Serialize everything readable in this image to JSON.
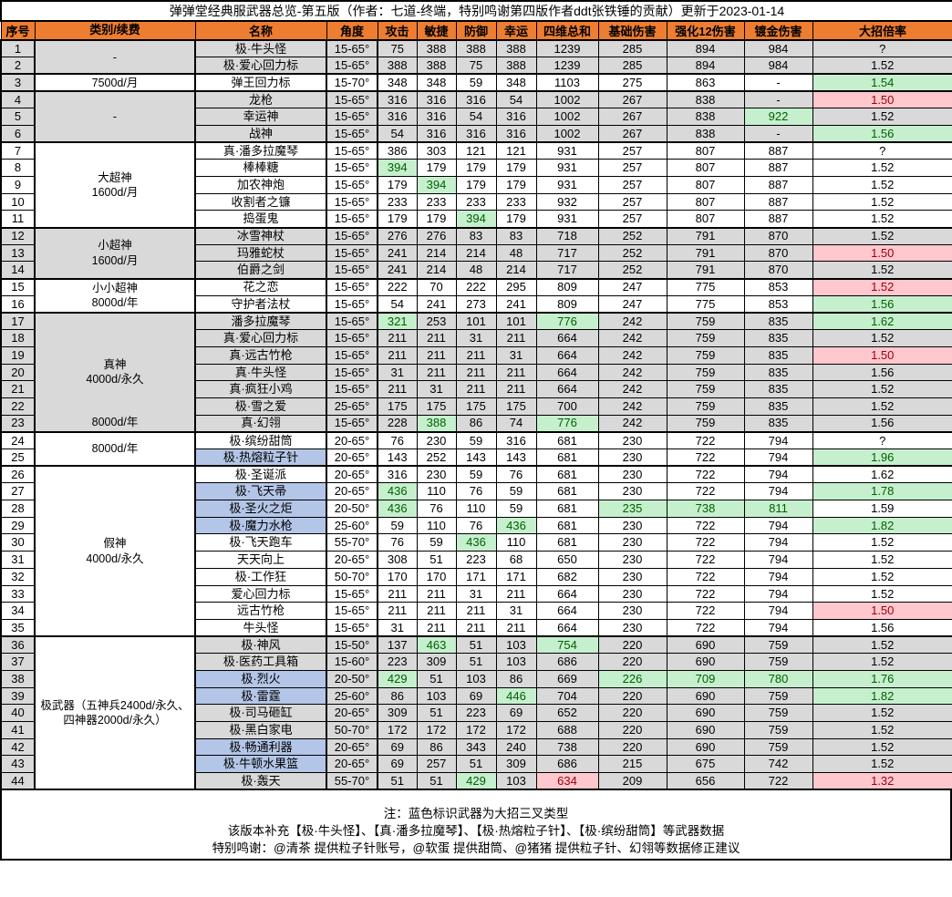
{
  "title": "弹弹堂经典服武器总览-第五版（作者：七道-终端，特别鸣谢第四版作者ddt张铁锤的贡献）更新于2023-01-14",
  "columns": [
    {
      "key": "idx",
      "label": "序号"
    },
    {
      "key": "cat",
      "label": "类别/续费"
    },
    {
      "key": "name",
      "label": "名称"
    },
    {
      "key": "angle",
      "label": "角度"
    },
    {
      "key": "atk",
      "label": "攻击"
    },
    {
      "key": "agi",
      "label": "敏捷"
    },
    {
      "key": "def",
      "label": "防御"
    },
    {
      "key": "luck",
      "label": "幸运"
    },
    {
      "key": "total",
      "label": "四维总和"
    },
    {
      "key": "base",
      "label": "基础伤害"
    },
    {
      "key": "enh",
      "label": "强化12伤害"
    },
    {
      "key": "gold",
      "label": "镀金伤害"
    },
    {
      "key": "ratio",
      "label": "大招倍率"
    }
  ],
  "groups": [
    {
      "start": 1,
      "end": 2,
      "lines": [
        "-"
      ],
      "bottom": null,
      "row_bg": "gray",
      "idx_bg": "gray",
      "cat_bg": "gray"
    },
    {
      "start": 3,
      "end": 3,
      "lines": [
        "7500d/月"
      ],
      "bottom": null,
      "row_bg": "white",
      "idx_bg": "gray",
      "cat_bg": "white"
    },
    {
      "start": 4,
      "end": 6,
      "lines": [
        "-"
      ],
      "bottom": null,
      "row_bg": "gray",
      "idx_bg": "gray",
      "cat_bg": "gray"
    },
    {
      "start": 7,
      "end": 11,
      "lines": [
        "大超神",
        "1600d/月"
      ],
      "bottom": null,
      "row_bg": "white",
      "idx_bg": "white",
      "cat_bg": "white"
    },
    {
      "start": 12,
      "end": 14,
      "lines": [
        "小超神",
        "1600d/月"
      ],
      "bottom": null,
      "row_bg": "gray",
      "idx_bg": "gray",
      "cat_bg": "gray"
    },
    {
      "start": 15,
      "end": 16,
      "lines": [
        "小小超神",
        "8000d/年"
      ],
      "bottom": null,
      "row_bg": "white",
      "idx_bg": "white",
      "cat_bg": "white"
    },
    {
      "start": 17,
      "end": 23,
      "lines": [
        "真神",
        "4000d/永久"
      ],
      "bottom": "8000d/年",
      "row_bg": "gray",
      "idx_bg": "gray",
      "cat_bg": "gray"
    },
    {
      "start": 24,
      "end": 25,
      "lines": [
        "8000d/年"
      ],
      "bottom": null,
      "row_bg": "white",
      "idx_bg": "white",
      "cat_bg": "white"
    },
    {
      "start": 26,
      "end": 35,
      "lines": [
        "假神",
        "4000d/永久"
      ],
      "bottom": null,
      "row_bg": "white",
      "idx_bg": "white",
      "cat_bg": "white"
    },
    {
      "start": 36,
      "end": 44,
      "lines": [
        "极武器（五神兵2400d/永久、",
        "四神器2000d/永久）"
      ],
      "bottom": null,
      "row_bg": "gray",
      "idx_bg": "gray",
      "cat_bg": "white"
    }
  ],
  "rows": [
    {
      "no": "1",
      "name": "极·牛头怪",
      "blue": false,
      "v": {
        "angle": "15-65°",
        "atk": "75",
        "agi": "388",
        "def": "388",
        "luck": "388",
        "total": "1239",
        "base": "285",
        "enh": "894",
        "gold": "984",
        "ratio": "?"
      },
      "hl": {}
    },
    {
      "no": "2",
      "name": "极·爱心回力标",
      "blue": false,
      "v": {
        "angle": "15-65°",
        "atk": "388",
        "agi": "388",
        "def": "75",
        "luck": "388",
        "total": "1239",
        "base": "285",
        "enh": "894",
        "gold": "984",
        "ratio": "1.52"
      },
      "hl": {}
    },
    {
      "no": "3",
      "name": "弹王回力标",
      "blue": false,
      "v": {
        "angle": "15-70°",
        "atk": "348",
        "agi": "348",
        "def": "59",
        "luck": "348",
        "total": "1103",
        "base": "275",
        "enh": "863",
        "gold": "-",
        "ratio": "1.54"
      },
      "hl": {
        "ratio": "g"
      }
    },
    {
      "no": "4",
      "name": "龙枪",
      "blue": false,
      "v": {
        "angle": "15-65°",
        "atk": "316",
        "agi": "316",
        "def": "316",
        "luck": "54",
        "total": "1002",
        "base": "267",
        "enh": "838",
        "gold": "-",
        "ratio": "1.50"
      },
      "hl": {
        "ratio": "p"
      }
    },
    {
      "no": "5",
      "name": "幸运神",
      "blue": false,
      "v": {
        "angle": "15-65°",
        "atk": "316",
        "agi": "316",
        "def": "54",
        "luck": "316",
        "total": "1002",
        "base": "267",
        "enh": "838",
        "gold": "922",
        "ratio": "1.52"
      },
      "hl": {
        "gold": "g"
      }
    },
    {
      "no": "6",
      "name": "战神",
      "blue": false,
      "v": {
        "angle": "15-65°",
        "atk": "54",
        "agi": "316",
        "def": "316",
        "luck": "316",
        "total": "1002",
        "base": "267",
        "enh": "838",
        "gold": "-",
        "ratio": "1.56"
      },
      "hl": {
        "ratio": "g"
      }
    },
    {
      "no": "7",
      "name": "真·潘多拉魔琴",
      "blue": false,
      "v": {
        "angle": "15-65°",
        "atk": "386",
        "agi": "303",
        "def": "121",
        "luck": "121",
        "total": "931",
        "base": "257",
        "enh": "807",
        "gold": "887",
        "ratio": "?"
      },
      "hl": {}
    },
    {
      "no": "8",
      "name": "棒棒糖",
      "blue": false,
      "v": {
        "angle": "15-65°",
        "atk": "394",
        "agi": "179",
        "def": "179",
        "luck": "179",
        "total": "931",
        "base": "257",
        "enh": "807",
        "gold": "887",
        "ratio": "1.52"
      },
      "hl": {
        "atk": "g"
      }
    },
    {
      "no": "9",
      "name": "加农神炮",
      "blue": false,
      "v": {
        "angle": "15-65°",
        "atk": "179",
        "agi": "394",
        "def": "179",
        "luck": "179",
        "total": "931",
        "base": "257",
        "enh": "807",
        "gold": "887",
        "ratio": "1.52"
      },
      "hl": {
        "agi": "g"
      }
    },
    {
      "no": "10",
      "name": "收割者之镰",
      "blue": false,
      "v": {
        "angle": "15-65°",
        "atk": "233",
        "agi": "233",
        "def": "233",
        "luck": "233",
        "total": "932",
        "base": "257",
        "enh": "807",
        "gold": "887",
        "ratio": "1.52"
      },
      "hl": {}
    },
    {
      "no": "11",
      "name": "捣蛋鬼",
      "blue": false,
      "v": {
        "angle": "15-65°",
        "atk": "179",
        "agi": "179",
        "def": "394",
        "luck": "179",
        "total": "931",
        "base": "257",
        "enh": "807",
        "gold": "887",
        "ratio": "1.52"
      },
      "hl": {
        "def": "g"
      }
    },
    {
      "no": "12",
      "name": "冰雪神杖",
      "blue": false,
      "v": {
        "angle": "15-65°",
        "atk": "276",
        "agi": "276",
        "def": "83",
        "luck": "83",
        "total": "718",
        "base": "252",
        "enh": "791",
        "gold": "870",
        "ratio": "1.52"
      },
      "hl": {}
    },
    {
      "no": "13",
      "name": "玛雅蛇杖",
      "blue": false,
      "v": {
        "angle": "15-65°",
        "atk": "241",
        "agi": "214",
        "def": "214",
        "luck": "48",
        "total": "717",
        "base": "252",
        "enh": "791",
        "gold": "870",
        "ratio": "1.50"
      },
      "hl": {
        "ratio": "p"
      }
    },
    {
      "no": "14",
      "name": "伯爵之剑",
      "blue": false,
      "v": {
        "angle": "15-65°",
        "atk": "241",
        "agi": "214",
        "def": "48",
        "luck": "214",
        "total": "717",
        "base": "252",
        "enh": "791",
        "gold": "870",
        "ratio": "1.52"
      },
      "hl": {}
    },
    {
      "no": "15",
      "name": "花之恋",
      "blue": false,
      "v": {
        "angle": "15-65°",
        "atk": "222",
        "agi": "70",
        "def": "222",
        "luck": "295",
        "total": "809",
        "base": "247",
        "enh": "775",
        "gold": "853",
        "ratio": "1.52"
      },
      "hl": {
        "ratio": "p"
      }
    },
    {
      "no": "16",
      "name": "守护者法杖",
      "blue": false,
      "v": {
        "angle": "15-65°",
        "atk": "54",
        "agi": "241",
        "def": "273",
        "luck": "241",
        "total": "809",
        "base": "247",
        "enh": "775",
        "gold": "853",
        "ratio": "1.56"
      },
      "hl": {
        "ratio": "g"
      }
    },
    {
      "no": "17",
      "name": "潘多拉魔琴",
      "blue": false,
      "v": {
        "angle": "15-65°",
        "atk": "321",
        "agi": "253",
        "def": "101",
        "luck": "101",
        "total": "776",
        "base": "242",
        "enh": "759",
        "gold": "835",
        "ratio": "1.62"
      },
      "hl": {
        "atk": "g",
        "total": "g",
        "ratio": "g"
      }
    },
    {
      "no": "18",
      "name": "真·爱心回力标",
      "blue": false,
      "v": {
        "angle": "15-65°",
        "atk": "211",
        "agi": "211",
        "def": "31",
        "luck": "211",
        "total": "664",
        "base": "242",
        "enh": "759",
        "gold": "835",
        "ratio": "1.52"
      },
      "hl": {}
    },
    {
      "no": "19",
      "name": "真·远古竹枪",
      "blue": false,
      "v": {
        "angle": "15-65°",
        "atk": "211",
        "agi": "211",
        "def": "211",
        "luck": "31",
        "total": "664",
        "base": "242",
        "enh": "759",
        "gold": "835",
        "ratio": "1.50"
      },
      "hl": {
        "ratio": "p"
      }
    },
    {
      "no": "20",
      "name": "真·牛头怪",
      "blue": false,
      "v": {
        "angle": "15-65°",
        "atk": "31",
        "agi": "211",
        "def": "211",
        "luck": "211",
        "total": "664",
        "base": "242",
        "enh": "759",
        "gold": "835",
        "ratio": "1.56"
      },
      "hl": {}
    },
    {
      "no": "21",
      "name": "真·疯狂小鸡",
      "blue": false,
      "v": {
        "angle": "15-65°",
        "atk": "211",
        "agi": "31",
        "def": "211",
        "luck": "211",
        "total": "664",
        "base": "242",
        "enh": "759",
        "gold": "835",
        "ratio": "1.52"
      },
      "hl": {}
    },
    {
      "no": "22",
      "name": "极·雪之爱",
      "blue": false,
      "v": {
        "angle": "25-65°",
        "atk": "175",
        "agi": "175",
        "def": "175",
        "luck": "175",
        "total": "700",
        "base": "242",
        "enh": "759",
        "gold": "835",
        "ratio": "1.52"
      },
      "hl": {}
    },
    {
      "no": "23",
      "name": "真·幻翎",
      "blue": false,
      "v": {
        "angle": "15-65°",
        "atk": "228",
        "agi": "388",
        "def": "86",
        "luck": "74",
        "total": "776",
        "base": "242",
        "enh": "759",
        "gold": "835",
        "ratio": "1.56"
      },
      "hl": {
        "agi": "g",
        "total": "g"
      }
    },
    {
      "no": "24",
      "name": "极·缤纷甜筒",
      "blue": false,
      "v": {
        "angle": "20-65°",
        "atk": "76",
        "agi": "230",
        "def": "59",
        "luck": "316",
        "total": "681",
        "base": "230",
        "enh": "722",
        "gold": "794",
        "ratio": "?"
      },
      "hl": {}
    },
    {
      "no": "25",
      "name": "极·热熔粒子针",
      "blue": true,
      "v": {
        "angle": "20-65°",
        "atk": "143",
        "agi": "252",
        "def": "143",
        "luck": "143",
        "total": "681",
        "base": "230",
        "enh": "722",
        "gold": "794",
        "ratio": "1.96"
      },
      "hl": {
        "ratio": "g"
      }
    },
    {
      "no": "26",
      "name": "极·圣诞派",
      "blue": false,
      "v": {
        "angle": "20-65°",
        "atk": "316",
        "agi": "230",
        "def": "59",
        "luck": "76",
        "total": "681",
        "base": "230",
        "enh": "722",
        "gold": "794",
        "ratio": "1.62"
      },
      "hl": {}
    },
    {
      "no": "27",
      "name": "极·飞天帚",
      "blue": true,
      "v": {
        "angle": "20-65°",
        "atk": "436",
        "agi": "110",
        "def": "76",
        "luck": "59",
        "total": "681",
        "base": "230",
        "enh": "722",
        "gold": "794",
        "ratio": "1.78"
      },
      "hl": {
        "atk": "g",
        "ratio": "g"
      }
    },
    {
      "no": "28",
      "name": "极·圣火之炬",
      "blue": true,
      "v": {
        "angle": "20-50°",
        "atk": "436",
        "agi": "76",
        "def": "110",
        "luck": "59",
        "total": "681",
        "base": "235",
        "enh": "738",
        "gold": "811",
        "ratio": "1.59"
      },
      "hl": {
        "atk": "g",
        "base": "g",
        "enh": "g",
        "gold": "g"
      }
    },
    {
      "no": "29",
      "name": "极·魔力水枪",
      "blue": true,
      "v": {
        "angle": "25-60°",
        "atk": "59",
        "agi": "110",
        "def": "76",
        "luck": "436",
        "total": "681",
        "base": "230",
        "enh": "722",
        "gold": "794",
        "ratio": "1.82"
      },
      "hl": {
        "luck": "g",
        "ratio": "g"
      }
    },
    {
      "no": "30",
      "name": "极·飞天跑车",
      "blue": false,
      "v": {
        "angle": "55-70°",
        "atk": "76",
        "agi": "59",
        "def": "436",
        "luck": "110",
        "total": "681",
        "base": "230",
        "enh": "722",
        "gold": "794",
        "ratio": "1.52"
      },
      "hl": {
        "def": "g"
      }
    },
    {
      "no": "31",
      "name": "天天向上",
      "blue": false,
      "v": {
        "angle": "20-65°",
        "atk": "308",
        "agi": "51",
        "def": "223",
        "luck": "68",
        "total": "650",
        "base": "230",
        "enh": "722",
        "gold": "794",
        "ratio": "1.52"
      },
      "hl": {}
    },
    {
      "no": "32",
      "name": "极·工作狂",
      "blue": false,
      "v": {
        "angle": "50-70°",
        "atk": "170",
        "agi": "170",
        "def": "171",
        "luck": "171",
        "total": "682",
        "base": "230",
        "enh": "722",
        "gold": "794",
        "ratio": "1.52"
      },
      "hl": {}
    },
    {
      "no": "33",
      "name": "爱心回力标",
      "blue": false,
      "v": {
        "angle": "15-65°",
        "atk": "211",
        "agi": "211",
        "def": "31",
        "luck": "211",
        "total": "664",
        "base": "230",
        "enh": "722",
        "gold": "794",
        "ratio": "1.52"
      },
      "hl": {}
    },
    {
      "no": "34",
      "name": "远古竹枪",
      "blue": false,
      "v": {
        "angle": "15-65°",
        "atk": "211",
        "agi": "211",
        "def": "211",
        "luck": "31",
        "total": "664",
        "base": "230",
        "enh": "722",
        "gold": "794",
        "ratio": "1.50"
      },
      "hl": {
        "ratio": "p"
      }
    },
    {
      "no": "35",
      "name": "牛头怪",
      "blue": false,
      "v": {
        "angle": "15-65°",
        "atk": "31",
        "agi": "211",
        "def": "211",
        "luck": "211",
        "total": "664",
        "base": "230",
        "enh": "722",
        "gold": "794",
        "ratio": "1.56"
      },
      "hl": {}
    },
    {
      "no": "36",
      "name": "极·神风",
      "blue": false,
      "v": {
        "angle": "15-50°",
        "atk": "137",
        "agi": "463",
        "def": "51",
        "luck": "103",
        "total": "754",
        "base": "220",
        "enh": "690",
        "gold": "759",
        "ratio": "1.52"
      },
      "hl": {
        "agi": "g",
        "total": "g"
      }
    },
    {
      "no": "37",
      "name": "极·医药工具箱",
      "blue": false,
      "v": {
        "angle": "15-60°",
        "atk": "223",
        "agi": "309",
        "def": "51",
        "luck": "103",
        "total": "686",
        "base": "220",
        "enh": "690",
        "gold": "759",
        "ratio": "1.52"
      },
      "hl": {}
    },
    {
      "no": "38",
      "name": "极·烈火",
      "blue": true,
      "v": {
        "angle": "20-50°",
        "atk": "429",
        "agi": "51",
        "def": "103",
        "luck": "86",
        "total": "669",
        "base": "226",
        "enh": "709",
        "gold": "780",
        "ratio": "1.76"
      },
      "hl": {
        "atk": "g",
        "base": "g",
        "enh": "g",
        "gold": "g",
        "ratio": "g"
      }
    },
    {
      "no": "39",
      "name": "极·雷霆",
      "blue": true,
      "v": {
        "angle": "25-60°",
        "atk": "86",
        "agi": "103",
        "def": "69",
        "luck": "446",
        "total": "704",
        "base": "220",
        "enh": "690",
        "gold": "759",
        "ratio": "1.82"
      },
      "hl": {
        "luck": "g",
        "ratio": "g"
      }
    },
    {
      "no": "40",
      "name": "极·司马砸缸",
      "blue": false,
      "v": {
        "angle": "20-65°",
        "atk": "309",
        "agi": "51",
        "def": "223",
        "luck": "69",
        "total": "652",
        "base": "220",
        "enh": "690",
        "gold": "759",
        "ratio": "1.52"
      },
      "hl": {}
    },
    {
      "no": "41",
      "name": "极·黑白家电",
      "blue": false,
      "v": {
        "angle": "50-70°",
        "atk": "172",
        "agi": "172",
        "def": "172",
        "luck": "172",
        "total": "688",
        "base": "220",
        "enh": "690",
        "gold": "759",
        "ratio": "1.52"
      },
      "hl": {}
    },
    {
      "no": "42",
      "name": "极·畅通利器",
      "blue": true,
      "v": {
        "angle": "20-65°",
        "atk": "69",
        "agi": "86",
        "def": "343",
        "luck": "240",
        "total": "738",
        "base": "220",
        "enh": "690",
        "gold": "759",
        "ratio": "1.52"
      },
      "hl": {}
    },
    {
      "no": "43",
      "name": "极·牛顿水果篮",
      "blue": true,
      "v": {
        "angle": "20-65°",
        "atk": "69",
        "agi": "257",
        "def": "51",
        "luck": "309",
        "total": "686",
        "base": "215",
        "enh": "675",
        "gold": "742",
        "ratio": "1.52"
      },
      "hl": {}
    },
    {
      "no": "44",
      "name": "极·轰天",
      "blue": false,
      "v": {
        "angle": "55-70°",
        "atk": "51",
        "agi": "51",
        "def": "429",
        "luck": "103",
        "total": "634",
        "base": "209",
        "enh": "656",
        "gold": "722",
        "ratio": "1.32"
      },
      "hl": {
        "def": "g",
        "total": "p",
        "ratio": "p"
      }
    }
  ],
  "footer": {
    "lines": [
      "注：蓝色标识武器为大招三叉类型",
      "该版本补充【极·牛头怪】、【真·潘多拉魔琴】、【极·热熔粒子针】、【极·缤纷甜筒】等武器数据",
      "特别鸣谢：@清茶 提供粒子针账号，@软蛋 提供甜筒、@猪猪 提供粒子针、幻翎等数据修正建议"
    ]
  },
  "colors": {
    "header_bg": "#ED7D31",
    "row_gray": "#D9D9D9",
    "highlight_green_bg": "#C6EFCE",
    "highlight_green_text": "#006100",
    "highlight_red_bg": "#FFC7CE",
    "highlight_red_text": "#9C0006",
    "name_blue_bg": "#B4C6E7",
    "border": "#000000"
  }
}
